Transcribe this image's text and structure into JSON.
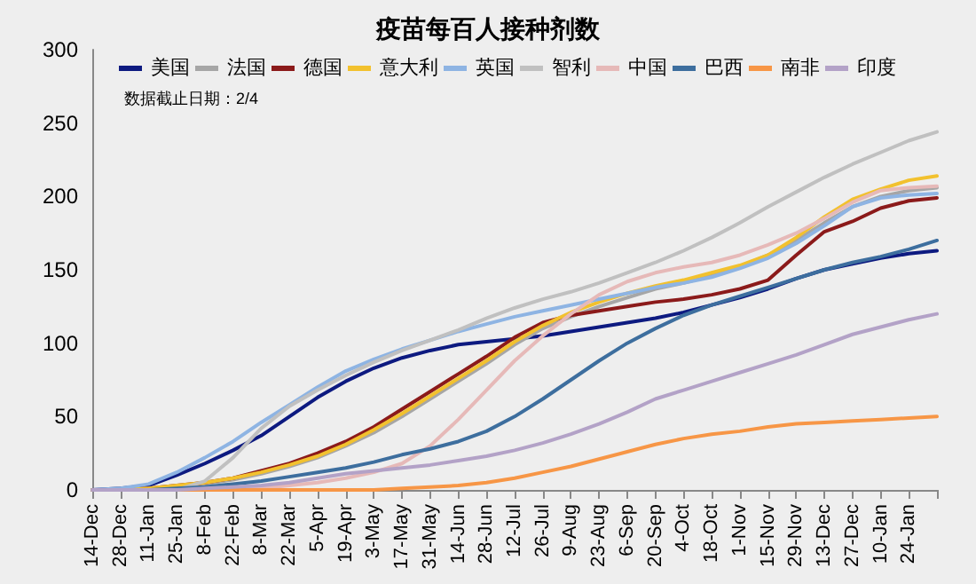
{
  "chart_data": {
    "type": "line",
    "title": "疫苗每百人接种剂数",
    "annotations": [
      "数据截止日期：2/4"
    ],
    "categories": [
      "14-Dec",
      "28-Dec",
      "11-Jan",
      "25-Jan",
      "8-Feb",
      "22-Feb",
      "8-Mar",
      "22-Mar",
      "5-Apr",
      "19-Apr",
      "3-May",
      "17-May",
      "31-May",
      "14-Jun",
      "28-Jun",
      "12-Jul",
      "26-Jul",
      "9-Aug",
      "23-Aug",
      "6-Sep",
      "20-Sep",
      "4-Oct",
      "18-Oct",
      "1-Nov",
      "15-Nov",
      "29-Nov",
      "13-Dec",
      "27-Dec",
      "10-Jan",
      "24-Jan",
      null
    ],
    "series": [
      {
        "name": "美国",
        "color": "#0d1a80",
        "values": [
          0,
          1,
          3,
          10,
          18,
          27,
          37,
          50,
          63,
          74,
          83,
          90,
          95,
          99,
          101,
          103,
          105,
          108,
          111,
          114,
          117,
          121,
          126,
          131,
          137,
          144,
          150,
          154,
          158,
          161,
          163
        ]
      },
      {
        "name": "法国",
        "color": "#a6a6a6",
        "values": [
          0,
          0,
          1,
          2,
          4,
          7,
          11,
          16,
          22,
          30,
          39,
          50,
          62,
          74,
          86,
          99,
          110,
          118,
          125,
          131,
          137,
          141,
          146,
          152,
          160,
          170,
          182,
          193,
          200,
          204,
          206
        ]
      },
      {
        "name": "德国",
        "color": "#8b1a1a",
        "values": [
          0,
          0,
          1,
          3,
          5,
          8,
          13,
          18,
          25,
          33,
          43,
          55,
          67,
          79,
          91,
          104,
          114,
          119,
          122,
          125,
          128,
          130,
          133,
          137,
          143,
          160,
          176,
          183,
          192,
          197,
          199
        ]
      },
      {
        "name": "意大利",
        "color": "#f2c12e",
        "values": [
          0,
          0,
          1,
          3,
          5,
          8,
          12,
          17,
          23,
          31,
          41,
          52,
          64,
          76,
          88,
          101,
          112,
          121,
          128,
          134,
          139,
          143,
          148,
          153,
          160,
          172,
          186,
          198,
          205,
          211,
          214
        ]
      },
      {
        "name": "英国",
        "color": "#8eb4e3",
        "values": [
          0,
          1,
          4,
          12,
          22,
          33,
          46,
          58,
          70,
          81,
          89,
          96,
          102,
          108,
          113,
          118,
          122,
          126,
          130,
          134,
          138,
          141,
          145,
          151,
          158,
          168,
          180,
          193,
          199,
          201,
          202
        ]
      },
      {
        "name": "智利",
        "color": "#c0c0c0",
        "values": [
          0,
          0,
          0,
          0,
          6,
          22,
          42,
          57,
          68,
          78,
          87,
          95,
          102,
          109,
          117,
          124,
          130,
          135,
          141,
          148,
          155,
          163,
          172,
          182,
          193,
          203,
          213,
          222,
          230,
          238,
          244
        ]
      },
      {
        "name": "中国",
        "color": "#e6b9b8",
        "values": [
          0,
          0,
          0,
          0,
          0,
          0,
          1,
          3,
          5,
          8,
          12,
          18,
          30,
          48,
          68,
          88,
          105,
          120,
          133,
          142,
          148,
          152,
          155,
          160,
          167,
          175,
          185,
          196,
          204,
          206,
          207
        ]
      },
      {
        "name": "巴西",
        "color": "#3d6e9e",
        "values": [
          0,
          0,
          0,
          1,
          2,
          4,
          6,
          9,
          12,
          15,
          19,
          24,
          28,
          33,
          40,
          50,
          62,
          75,
          88,
          100,
          110,
          119,
          126,
          132,
          138,
          144,
          150,
          155,
          159,
          164,
          170
        ]
      },
      {
        "name": "南非",
        "color": "#f79646",
        "values": [
          0,
          0,
          0,
          0,
          0,
          0,
          0,
          0,
          0,
          0,
          0,
          1,
          2,
          3,
          5,
          8,
          12,
          16,
          21,
          26,
          31,
          35,
          38,
          40,
          43,
          45,
          46,
          47,
          48,
          49,
          50
        ]
      },
      {
        "name": "印度",
        "color": "#b3a2c7",
        "values": [
          0,
          0,
          0,
          0,
          1,
          2,
          3,
          5,
          8,
          11,
          13,
          15,
          17,
          20,
          23,
          27,
          32,
          38,
          45,
          53,
          62,
          68,
          74,
          80,
          86,
          92,
          99,
          106,
          111,
          116,
          120
        ]
      }
    ],
    "ylim": [
      0,
      300
    ],
    "yticks": [
      0,
      50,
      100,
      150,
      200,
      250,
      300
    ],
    "grid": false,
    "legend": "top",
    "marker": "none",
    "line_style": "solid"
  }
}
